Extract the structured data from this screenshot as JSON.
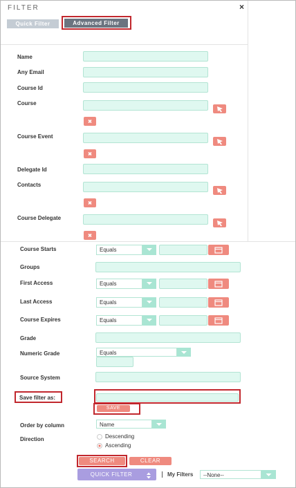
{
  "header": {
    "title": "FILTER",
    "close": "×"
  },
  "tabs": [
    "Quick Filter",
    "Advanced Filter"
  ],
  "basic_fields": [
    "Name",
    "Any Email",
    "Course Id",
    "Course",
    "Course Event",
    "Delegate Id",
    "Contacts",
    "Course Delegate"
  ],
  "advanced_fields": [
    {
      "label": "Course Starts",
      "operator": "Equals"
    },
    {
      "label": "Groups"
    },
    {
      "label": "First Access",
      "operator": "Equals"
    },
    {
      "label": "Last Access",
      "operator": "Equals"
    },
    {
      "label": "Course Expires",
      "operator": "Equals"
    },
    {
      "label": "Grade"
    },
    {
      "label": "Numeric Grade",
      "operator": "Equals"
    },
    {
      "label": "Source System"
    }
  ],
  "save": {
    "label": "Save filter as:",
    "button": "SAVE"
  },
  "order": {
    "label": "Order by column",
    "value": "Name"
  },
  "direction": {
    "label": "Direction",
    "options": [
      "Descending",
      "Ascending"
    ]
  },
  "actions": [
    "SEARCH",
    "CLEAR"
  ],
  "quick_filter": "QUICK FILTER",
  "my_filters": {
    "label": "My Filters",
    "value": "--None--"
  }
}
